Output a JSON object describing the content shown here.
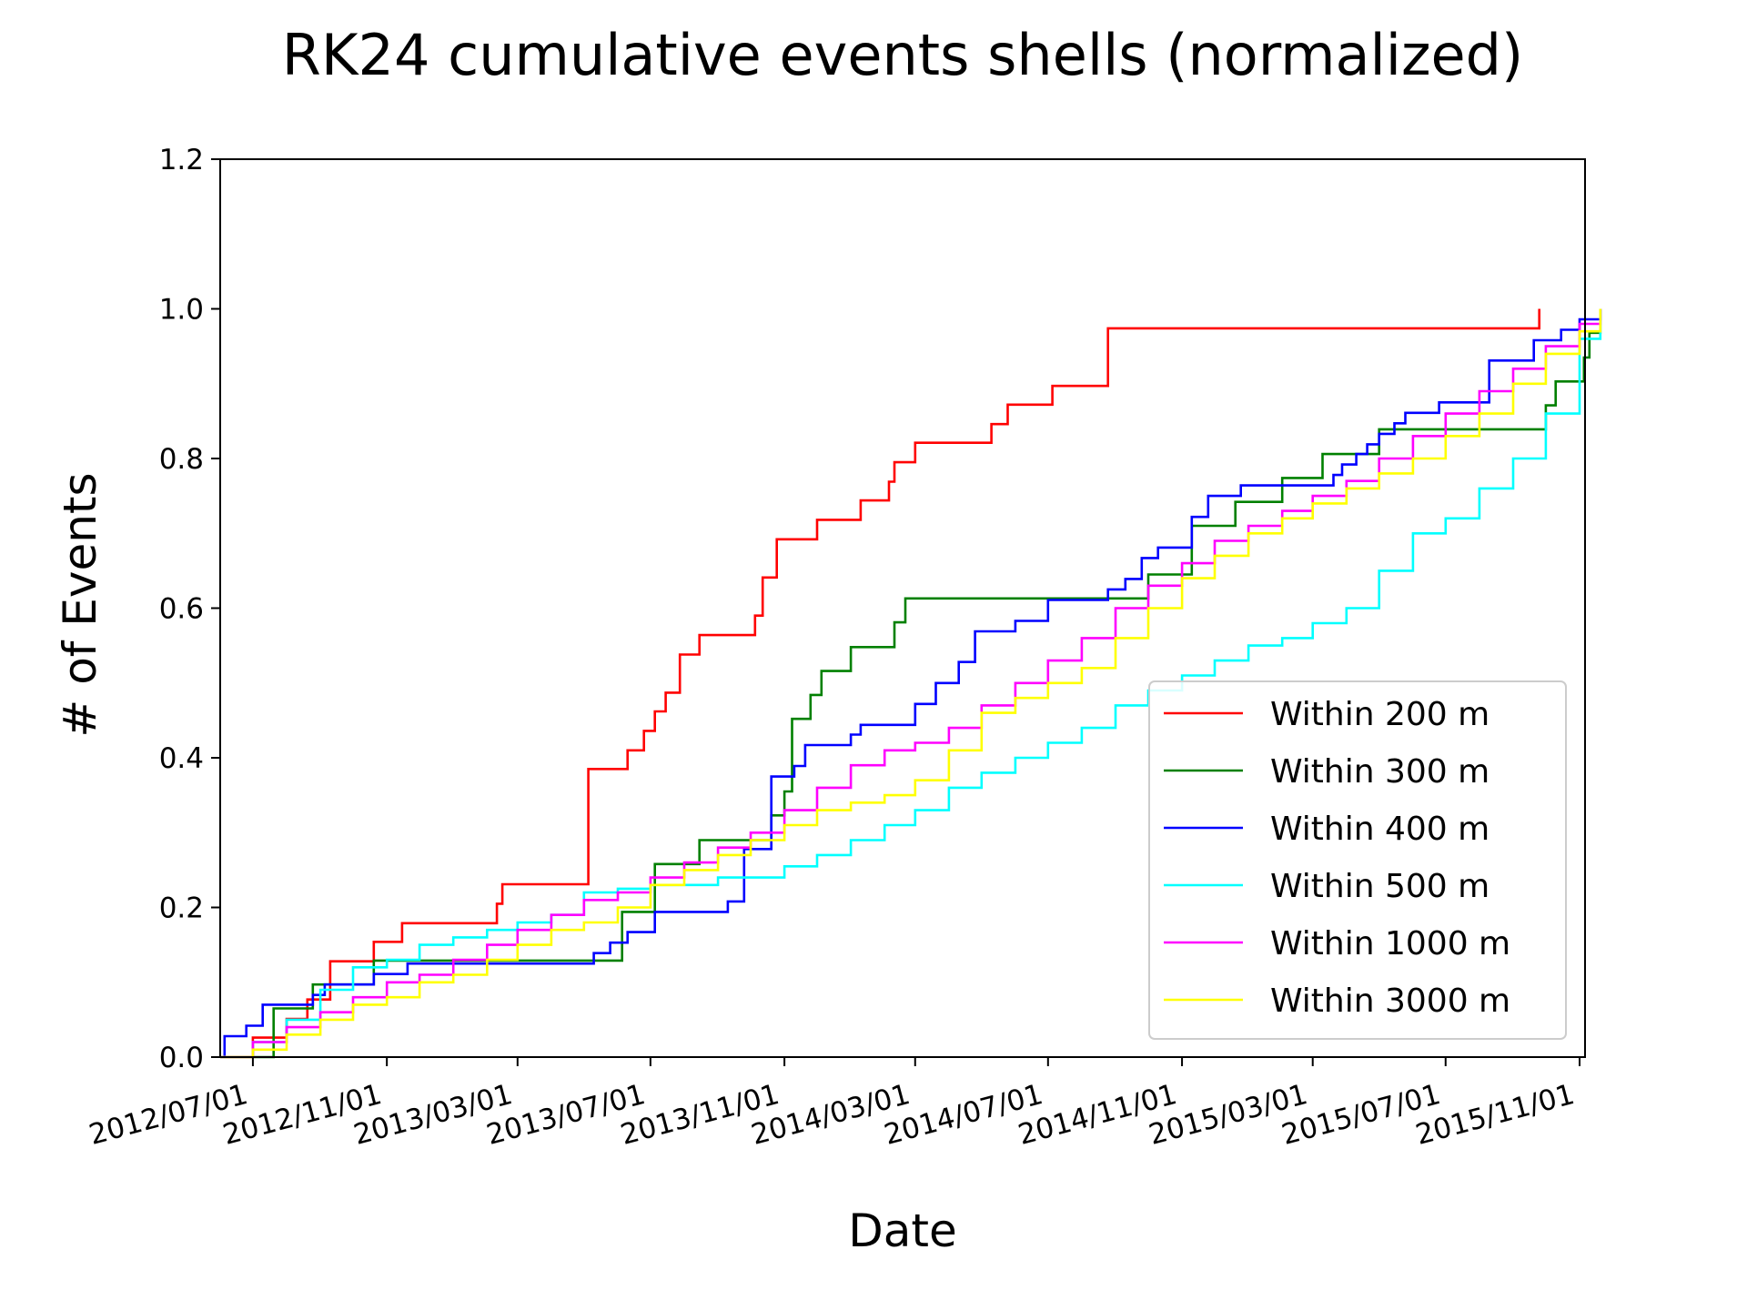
{
  "chart_data": {
    "type": "line",
    "step": true,
    "title": "RK24 cumulative events shells (normalized)",
    "xlabel": "Date",
    "ylabel": "# of Events",
    "xlim": [
      "2012-06-01",
      "2015-11-06"
    ],
    "ylim": [
      0,
      1.2
    ],
    "grid": false,
    "legend_position": "lower-right",
    "x_ticks": [
      "2012-07-01",
      "2012-11-01",
      "2013-03-01",
      "2013-07-01",
      "2013-11-01",
      "2014-03-01",
      "2014-07-01",
      "2014-11-01",
      "2015-03-01",
      "2015-07-01",
      "2015-11-01"
    ],
    "x_tick_labels": [
      "2012/07/01",
      "2012/11/01",
      "2013/03/01",
      "2013/07/01",
      "2013/11/01",
      "2014/03/01",
      "2014/07/01",
      "2014/11/01",
      "2015/03/01",
      "2015/07/01",
      "2015/11/01"
    ],
    "y_ticks": [
      0.0,
      0.2,
      0.4,
      0.6,
      0.8,
      1.0,
      1.2
    ],
    "y_tick_labels": [
      "0.0",
      "0.2",
      "0.4",
      "0.6",
      "0.8",
      "1.0",
      "1.2"
    ],
    "series": [
      {
        "name": "Within 200 m",
        "color": "#ff0000",
        "points": [
          [
            "2012-06-01",
            0.0
          ],
          [
            "2012-06-15",
            0.0
          ],
          [
            "2012-07-01",
            0.026
          ],
          [
            "2012-08-01",
            0.051
          ],
          [
            "2012-08-20",
            0.077
          ],
          [
            "2012-09-10",
            0.128
          ],
          [
            "2012-10-20",
            0.154
          ],
          [
            "2012-11-15",
            0.179
          ],
          [
            "2013-02-10",
            0.205
          ],
          [
            "2013-02-15",
            0.231
          ],
          [
            "2013-05-05",
            0.385
          ],
          [
            "2013-06-10",
            0.41
          ],
          [
            "2013-06-25",
            0.436
          ],
          [
            "2013-07-05",
            0.462
          ],
          [
            "2013-07-15",
            0.487
          ],
          [
            "2013-07-28",
            0.538
          ],
          [
            "2013-08-15",
            0.564
          ],
          [
            "2013-10-05",
            0.59
          ],
          [
            "2013-10-12",
            0.641
          ],
          [
            "2013-10-25",
            0.692
          ],
          [
            "2013-12-01",
            0.718
          ],
          [
            "2014-01-10",
            0.744
          ],
          [
            "2014-02-05",
            0.769
          ],
          [
            "2014-02-10",
            0.795
          ],
          [
            "2014-03-01",
            0.821
          ],
          [
            "2014-05-10",
            0.846
          ],
          [
            "2014-05-25",
            0.872
          ],
          [
            "2014-07-05",
            0.897
          ],
          [
            "2014-08-25",
            0.974
          ],
          [
            "2015-09-25",
            1.0
          ]
        ]
      },
      {
        "name": "Within 300 m",
        "color": "#008000",
        "points": [
          [
            "2012-06-01",
            0.0
          ],
          [
            "2012-07-15",
            0.0
          ],
          [
            "2012-07-20",
            0.065
          ],
          [
            "2012-08-25",
            0.097
          ],
          [
            "2012-10-20",
            0.129
          ],
          [
            "2013-06-05",
            0.194
          ],
          [
            "2013-07-05",
            0.258
          ],
          [
            "2013-08-15",
            0.29
          ],
          [
            "2013-10-20",
            0.323
          ],
          [
            "2013-11-01",
            0.355
          ],
          [
            "2013-11-08",
            0.452
          ],
          [
            "2013-11-25",
            0.484
          ],
          [
            "2013-12-05",
            0.516
          ],
          [
            "2014-01-01",
            0.548
          ],
          [
            "2014-02-10",
            0.581
          ],
          [
            "2014-02-20",
            0.613
          ],
          [
            "2014-10-01",
            0.645
          ],
          [
            "2014-11-10",
            0.71
          ],
          [
            "2014-12-20",
            0.742
          ],
          [
            "2015-02-01",
            0.774
          ],
          [
            "2015-03-10",
            0.806
          ],
          [
            "2015-05-01",
            0.839
          ],
          [
            "2015-10-01",
            0.871
          ],
          [
            "2015-10-10",
            0.903
          ],
          [
            "2015-11-05",
            0.935
          ],
          [
            "2015-11-10",
            0.968
          ],
          [
            "2015-11-20",
            1.0
          ]
        ]
      },
      {
        "name": "Within 400 m",
        "color": "#0000ff",
        "points": [
          [
            "2012-06-01",
            0.0
          ],
          [
            "2012-06-05",
            0.028
          ],
          [
            "2012-06-25",
            0.042
          ],
          [
            "2012-07-10",
            0.07
          ],
          [
            "2012-08-25",
            0.083
          ],
          [
            "2012-09-05",
            0.097
          ],
          [
            "2012-10-20",
            0.111
          ],
          [
            "2012-11-20",
            0.125
          ],
          [
            "2013-05-10",
            0.139
          ],
          [
            "2013-05-25",
            0.153
          ],
          [
            "2013-06-10",
            0.167
          ],
          [
            "2013-07-05",
            0.194
          ],
          [
            "2013-09-10",
            0.208
          ],
          [
            "2013-09-25",
            0.278
          ],
          [
            "2013-10-20",
            0.375
          ],
          [
            "2013-11-10",
            0.389
          ],
          [
            "2013-11-20",
            0.417
          ],
          [
            "2014-01-01",
            0.431
          ],
          [
            "2014-01-10",
            0.444
          ],
          [
            "2014-03-01",
            0.472
          ],
          [
            "2014-03-20",
            0.5
          ],
          [
            "2014-04-10",
            0.528
          ],
          [
            "2014-04-25",
            0.569
          ],
          [
            "2014-06-01",
            0.583
          ],
          [
            "2014-07-01",
            0.611
          ],
          [
            "2014-08-25",
            0.625
          ],
          [
            "2014-09-10",
            0.639
          ],
          [
            "2014-09-25",
            0.667
          ],
          [
            "2014-10-10",
            0.681
          ],
          [
            "2014-11-10",
            0.722
          ],
          [
            "2014-11-25",
            0.75
          ],
          [
            "2014-12-25",
            0.764
          ],
          [
            "2015-03-20",
            0.778
          ],
          [
            "2015-03-28",
            0.792
          ],
          [
            "2015-04-10",
            0.806
          ],
          [
            "2015-04-20",
            0.819
          ],
          [
            "2015-05-01",
            0.833
          ],
          [
            "2015-05-15",
            0.847
          ],
          [
            "2015-05-25",
            0.861
          ],
          [
            "2015-06-25",
            0.875
          ],
          [
            "2015-08-10",
            0.931
          ],
          [
            "2015-09-20",
            0.958
          ],
          [
            "2015-10-15",
            0.972
          ],
          [
            "2015-11-01",
            0.986
          ],
          [
            "2015-11-20",
            1.0
          ]
        ]
      },
      {
        "name": "Within 500 m",
        "color": "#00ffff",
        "points": [
          [
            "2012-06-01",
            0.0
          ],
          [
            "2012-07-01",
            0.02
          ],
          [
            "2012-08-01",
            0.05
          ],
          [
            "2012-09-01",
            0.09
          ],
          [
            "2012-10-01",
            0.12
          ],
          [
            "2012-11-01",
            0.13
          ],
          [
            "2012-12-01",
            0.15
          ],
          [
            "2013-01-01",
            0.16
          ],
          [
            "2013-02-01",
            0.17
          ],
          [
            "2013-03-01",
            0.18
          ],
          [
            "2013-04-01",
            0.19
          ],
          [
            "2013-05-01",
            0.22
          ],
          [
            "2013-06-01",
            0.225
          ],
          [
            "2013-07-01",
            0.23
          ],
          [
            "2013-09-01",
            0.24
          ],
          [
            "2013-11-01",
            0.255
          ],
          [
            "2013-12-01",
            0.27
          ],
          [
            "2014-01-01",
            0.29
          ],
          [
            "2014-02-01",
            0.31
          ],
          [
            "2014-03-01",
            0.33
          ],
          [
            "2014-04-01",
            0.36
          ],
          [
            "2014-05-01",
            0.38
          ],
          [
            "2014-06-01",
            0.4
          ],
          [
            "2014-07-01",
            0.42
          ],
          [
            "2014-08-01",
            0.44
          ],
          [
            "2014-09-01",
            0.47
          ],
          [
            "2014-10-01",
            0.49
          ],
          [
            "2014-11-01",
            0.51
          ],
          [
            "2014-12-01",
            0.53
          ],
          [
            "2015-01-01",
            0.55
          ],
          [
            "2015-02-01",
            0.56
          ],
          [
            "2015-03-01",
            0.58
          ],
          [
            "2015-04-01",
            0.6
          ],
          [
            "2015-05-01",
            0.65
          ],
          [
            "2015-06-01",
            0.7
          ],
          [
            "2015-07-01",
            0.72
          ],
          [
            "2015-08-01",
            0.76
          ],
          [
            "2015-09-01",
            0.8
          ],
          [
            "2015-10-01",
            0.86
          ],
          [
            "2015-11-01",
            0.96
          ],
          [
            "2015-11-20",
            1.0
          ]
        ]
      },
      {
        "name": "Within 1000 m",
        "color": "#ff00ff",
        "points": [
          [
            "2012-06-01",
            0.0
          ],
          [
            "2012-07-01",
            0.02
          ],
          [
            "2012-08-01",
            0.04
          ],
          [
            "2012-09-01",
            0.06
          ],
          [
            "2012-10-01",
            0.08
          ],
          [
            "2012-11-01",
            0.1
          ],
          [
            "2012-12-01",
            0.11
          ],
          [
            "2013-01-01",
            0.13
          ],
          [
            "2013-02-01",
            0.15
          ],
          [
            "2013-03-01",
            0.17
          ],
          [
            "2013-04-01",
            0.19
          ],
          [
            "2013-05-01",
            0.21
          ],
          [
            "2013-06-01",
            0.22
          ],
          [
            "2013-07-01",
            0.24
          ],
          [
            "2013-08-01",
            0.26
          ],
          [
            "2013-09-01",
            0.28
          ],
          [
            "2013-10-01",
            0.3
          ],
          [
            "2013-11-01",
            0.33
          ],
          [
            "2013-12-01",
            0.36
          ],
          [
            "2014-01-01",
            0.39
          ],
          [
            "2014-02-01",
            0.41
          ],
          [
            "2014-03-01",
            0.42
          ],
          [
            "2014-04-01",
            0.44
          ],
          [
            "2014-05-01",
            0.47
          ],
          [
            "2014-06-01",
            0.5
          ],
          [
            "2014-07-01",
            0.53
          ],
          [
            "2014-08-01",
            0.56
          ],
          [
            "2014-09-01",
            0.6
          ],
          [
            "2014-10-01",
            0.63
          ],
          [
            "2014-11-01",
            0.66
          ],
          [
            "2014-12-01",
            0.69
          ],
          [
            "2015-01-01",
            0.71
          ],
          [
            "2015-02-01",
            0.73
          ],
          [
            "2015-03-01",
            0.75
          ],
          [
            "2015-04-01",
            0.77
          ],
          [
            "2015-05-01",
            0.8
          ],
          [
            "2015-06-01",
            0.83
          ],
          [
            "2015-07-01",
            0.86
          ],
          [
            "2015-08-01",
            0.89
          ],
          [
            "2015-09-01",
            0.92
          ],
          [
            "2015-10-01",
            0.95
          ],
          [
            "2015-11-01",
            0.98
          ],
          [
            "2015-11-20",
            1.0
          ]
        ]
      },
      {
        "name": "Within 3000 m",
        "color": "#ffff00",
        "points": [
          [
            "2012-06-01",
            0.0
          ],
          [
            "2012-07-01",
            0.01
          ],
          [
            "2012-08-01",
            0.03
          ],
          [
            "2012-09-01",
            0.05
          ],
          [
            "2012-10-01",
            0.07
          ],
          [
            "2012-11-01",
            0.08
          ],
          [
            "2012-12-01",
            0.1
          ],
          [
            "2013-01-01",
            0.11
          ],
          [
            "2013-02-01",
            0.13
          ],
          [
            "2013-03-01",
            0.15
          ],
          [
            "2013-04-01",
            0.17
          ],
          [
            "2013-05-01",
            0.18
          ],
          [
            "2013-06-01",
            0.2
          ],
          [
            "2013-07-01",
            0.23
          ],
          [
            "2013-08-01",
            0.25
          ],
          [
            "2013-09-01",
            0.27
          ],
          [
            "2013-10-01",
            0.29
          ],
          [
            "2013-11-01",
            0.31
          ],
          [
            "2013-12-01",
            0.33
          ],
          [
            "2014-01-01",
            0.34
          ],
          [
            "2014-02-01",
            0.35
          ],
          [
            "2014-03-01",
            0.37
          ],
          [
            "2014-04-01",
            0.41
          ],
          [
            "2014-05-01",
            0.46
          ],
          [
            "2014-06-01",
            0.48
          ],
          [
            "2014-07-01",
            0.5
          ],
          [
            "2014-08-01",
            0.52
          ],
          [
            "2014-09-01",
            0.56
          ],
          [
            "2014-10-01",
            0.6
          ],
          [
            "2014-11-01",
            0.64
          ],
          [
            "2014-12-01",
            0.67
          ],
          [
            "2015-01-01",
            0.7
          ],
          [
            "2015-02-01",
            0.72
          ],
          [
            "2015-03-01",
            0.74
          ],
          [
            "2015-04-01",
            0.76
          ],
          [
            "2015-05-01",
            0.78
          ],
          [
            "2015-06-01",
            0.8
          ],
          [
            "2015-07-01",
            0.83
          ],
          [
            "2015-08-01",
            0.86
          ],
          [
            "2015-09-01",
            0.9
          ],
          [
            "2015-10-01",
            0.94
          ],
          [
            "2015-11-01",
            0.97
          ],
          [
            "2015-11-20",
            1.0
          ]
        ]
      }
    ]
  }
}
